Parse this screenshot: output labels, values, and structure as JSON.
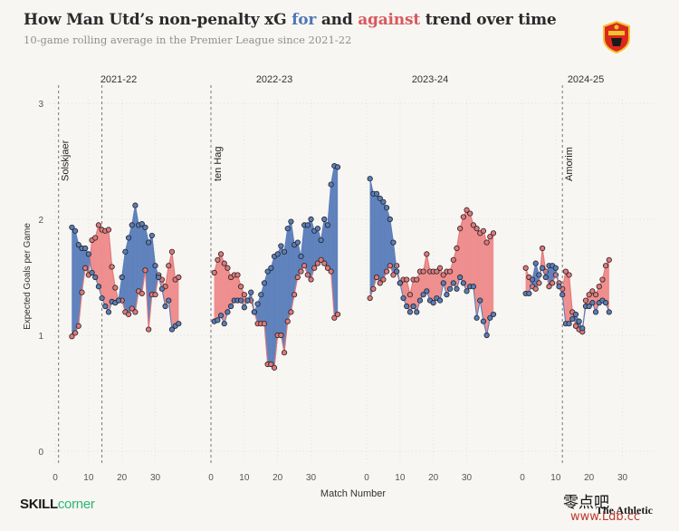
{
  "title_parts": {
    "before": "How Man Utd’s non-penalty xG ",
    "for": "for",
    "middle": " and ",
    "against": "against",
    "after": " trend over time"
  },
  "subtitle": "10-game rolling average in the Premier League since 2021-22",
  "brand_left": {
    "skill": "SKILL",
    "corner": "corner"
  },
  "brand_right": "The Athletic",
  "watermark": {
    "text": "零点吧",
    "url": "www.Ldb.cc"
  },
  "colors": {
    "for": "#5b7db8",
    "against": "#e0787a",
    "for_fill": "#5f82bd",
    "against_fill": "#ef8e8e",
    "for_word": "#4e76b5",
    "against_word": "#d9595d",
    "crest": "#da291c"
  },
  "chart_data": {
    "type": "line",
    "xlabel": "Match Number",
    "ylabel": "Expected Goals per Game",
    "ylim": [
      0,
      3
    ],
    "yticks": [
      0,
      1,
      2,
      3
    ],
    "grid": true,
    "panels": [
      {
        "season": "2021-22",
        "xlim": [
          0,
          38
        ],
        "xticks": [
          0,
          10,
          20,
          30
        ],
        "events": [
          {
            "x": 1,
            "label": "Solskjaer"
          },
          {
            "x": 14,
            "label": ""
          }
        ],
        "series": [
          {
            "name": "for",
            "x": [
              5,
              6,
              7,
              8,
              9,
              10,
              11,
              12,
              13,
              14,
              15,
              16,
              17,
              18,
              19,
              20,
              21,
              22,
              23,
              24,
              25,
              26,
              27,
              28,
              29,
              30,
              31,
              32,
              33,
              34,
              35,
              36,
              37
            ],
            "values": [
              1.93,
              1.9,
              1.78,
              1.75,
              1.75,
              1.7,
              1.54,
              1.5,
              1.42,
              1.32,
              1.25,
              1.2,
              1.29,
              1.28,
              1.3,
              1.5,
              1.72,
              1.84,
              1.95,
              2.12,
              1.95,
              1.96,
              1.93,
              1.8,
              1.86,
              1.6,
              1.5,
              1.4,
              1.25,
              1.3,
              1.05,
              1.08,
              1.1
            ]
          },
          {
            "name": "against",
            "x": [
              5,
              6,
              7,
              8,
              9,
              10,
              11,
              12,
              13,
              14,
              15,
              16,
              17,
              18,
              19,
              20,
              21,
              22,
              23,
              24,
              25,
              26,
              27,
              28,
              29,
              30,
              31,
              32,
              33,
              34,
              35,
              36,
              37
            ],
            "values": [
              0.99,
              1.02,
              1.08,
              1.37,
              1.58,
              1.52,
              1.82,
              1.84,
              1.95,
              1.91,
              1.9,
              1.91,
              1.59,
              1.41,
              1.3,
              1.3,
              1.2,
              1.18,
              1.23,
              1.2,
              1.38,
              1.36,
              1.56,
              1.05,
              1.35,
              1.35,
              1.52,
              1.48,
              1.42,
              1.6,
              1.72,
              1.48,
              1.5
            ]
          }
        ]
      },
      {
        "season": "2022-23",
        "xlim": [
          0,
          38
        ],
        "xticks": [
          0,
          10,
          20,
          30
        ],
        "events": [
          {
            "x": 0,
            "label": "ten Hag"
          }
        ],
        "series": [
          {
            "name": "for",
            "x": [
              1,
              2,
              3,
              4,
              5,
              6,
              7,
              8,
              9,
              10,
              11,
              12,
              13,
              14,
              15,
              16,
              17,
              18,
              19,
              20,
              21,
              22,
              23,
              24,
              25,
              26,
              27,
              28,
              29,
              30,
              31,
              32,
              33,
              34,
              35,
              36,
              37,
              38
            ],
            "values": [
              1.12,
              1.13,
              1.17,
              1.1,
              1.2,
              1.25,
              1.3,
              1.3,
              1.3,
              1.24,
              1.3,
              1.37,
              1.2,
              1.27,
              1.35,
              1.45,
              1.55,
              1.58,
              1.68,
              1.7,
              1.77,
              1.72,
              1.92,
              1.98,
              1.78,
              1.8,
              1.68,
              1.95,
              1.95,
              2.0,
              1.9,
              1.92,
              1.82,
              2.0,
              1.95,
              2.3,
              2.46,
              2.45
            ]
          },
          {
            "name": "against",
            "x": [
              1,
              2,
              3,
              4,
              5,
              6,
              7,
              8,
              9,
              10,
              11,
              12,
              13,
              14,
              15,
              16,
              17,
              18,
              19,
              20,
              21,
              22,
              23,
              24,
              25,
              26,
              27,
              28,
              29,
              30,
              31,
              32,
              33,
              34,
              35,
              36,
              37,
              38
            ],
            "values": [
              1.54,
              1.65,
              1.7,
              1.62,
              1.58,
              1.5,
              1.52,
              1.52,
              1.42,
              1.35,
              1.3,
              1.3,
              1.2,
              1.1,
              1.1,
              1.1,
              0.75,
              0.75,
              0.72,
              1.0,
              1.0,
              0.85,
              1.12,
              1.2,
              1.35,
              1.5,
              1.55,
              1.6,
              1.52,
              1.48,
              1.58,
              1.62,
              1.65,
              1.62,
              1.58,
              1.55,
              1.15,
              1.18
            ]
          }
        ]
      },
      {
        "season": "2023-24",
        "xlim": [
          0,
          38
        ],
        "xticks": [
          0,
          10,
          20,
          30
        ],
        "events": [],
        "series": [
          {
            "name": "for",
            "x": [
              1,
              2,
              3,
              4,
              5,
              6,
              7,
              8,
              9,
              10,
              11,
              12,
              13,
              14,
              15,
              16,
              17,
              18,
              19,
              20,
              21,
              22,
              23,
              24,
              25,
              26,
              27,
              28,
              29,
              30,
              31,
              32,
              33,
              34,
              35,
              36,
              37,
              38
            ],
            "values": [
              2.35,
              2.22,
              2.22,
              2.18,
              2.15,
              2.1,
              2.0,
              1.8,
              1.55,
              1.45,
              1.32,
              1.25,
              1.2,
              1.25,
              1.2,
              1.3,
              1.35,
              1.38,
              1.3,
              1.28,
              1.32,
              1.3,
              1.45,
              1.35,
              1.4,
              1.45,
              1.4,
              1.5,
              1.45,
              1.38,
              1.42,
              1.42,
              1.15,
              1.3,
              1.12,
              1.0,
              1.15,
              1.18
            ]
          },
          {
            "name": "against",
            "x": [
              1,
              2,
              3,
              4,
              5,
              6,
              7,
              8,
              9,
              10,
              11,
              12,
              13,
              14,
              15,
              16,
              17,
              18,
              19,
              20,
              21,
              22,
              23,
              24,
              25,
              26,
              27,
              28,
              29,
              30,
              31,
              32,
              33,
              34,
              35,
              36,
              37,
              38
            ],
            "values": [
              1.32,
              1.4,
              1.5,
              1.45,
              1.48,
              1.55,
              1.6,
              1.52,
              1.6,
              1.45,
              1.48,
              1.48,
              1.35,
              1.48,
              1.48,
              1.55,
              1.55,
              1.7,
              1.55,
              1.55,
              1.55,
              1.58,
              1.52,
              1.55,
              1.55,
              1.65,
              1.75,
              1.92,
              2.02,
              2.08,
              2.05,
              1.95,
              1.92,
              1.88,
              1.9,
              1.8,
              1.85,
              1.88
            ]
          }
        ]
      },
      {
        "season": "2024-25",
        "xlim": [
          0,
          38
        ],
        "xticks": [
          0,
          10,
          20,
          30
        ],
        "events": [
          {
            "x": 12,
            "label": "Amorim"
          }
        ],
        "series": [
          {
            "name": "for",
            "x": [
              1,
              2,
              3,
              4,
              5,
              6,
              7,
              8,
              9,
              10,
              11,
              12,
              13,
              14,
              15,
              16,
              17,
              18,
              19,
              20,
              21,
              22,
              23,
              24,
              25,
              26
            ],
            "values": [
              1.36,
              1.36,
              1.48,
              1.62,
              1.52,
              1.58,
              1.5,
              1.6,
              1.6,
              1.58,
              1.42,
              1.35,
              1.1,
              1.1,
              1.14,
              1.18,
              1.12,
              1.06,
              1.25,
              1.25,
              1.28,
              1.2,
              1.28,
              1.3,
              1.28,
              1.2
            ]
          },
          {
            "name": "against",
            "x": [
              1,
              2,
              3,
              4,
              5,
              6,
              7,
              8,
              9,
              10,
              11,
              12,
              13,
              14,
              15,
              16,
              17,
              18,
              19,
              20,
              21,
              22,
              23,
              24,
              25,
              26
            ],
            "values": [
              1.58,
              1.5,
              1.42,
              1.4,
              1.45,
              1.75,
              1.55,
              1.42,
              1.45,
              1.52,
              1.45,
              1.4,
              1.55,
              1.52,
              1.2,
              1.08,
              1.05,
              1.03,
              1.3,
              1.35,
              1.38,
              1.35,
              1.42,
              1.48,
              1.6,
              1.65
            ]
          }
        ]
      }
    ]
  }
}
